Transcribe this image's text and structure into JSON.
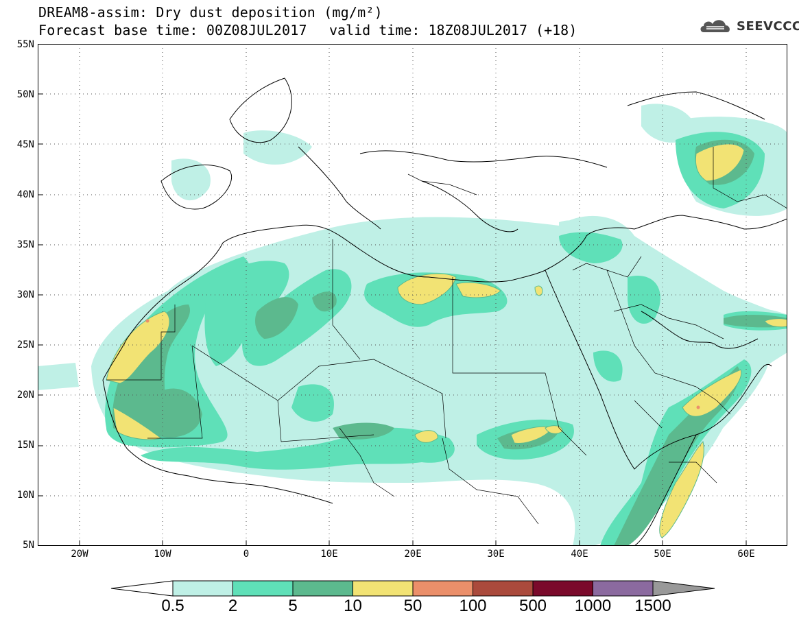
{
  "header": {
    "title": "DREAM8-assim: Dry dust deposition (mg/m²)",
    "base_time": "Forecast base time: 00Z08JUL2017",
    "valid_time": "valid time: 18Z08JUL2017 (+18)",
    "logo_text": "SEEVCCC"
  },
  "map": {
    "lat_labels": [
      "55N",
      "50N",
      "45N",
      "40N",
      "35N",
      "30N",
      "25N",
      "20N",
      "15N",
      "10N",
      "5N"
    ],
    "lon_labels": [
      "20W",
      "10W",
      "0",
      "10E",
      "20E",
      "30E",
      "40E",
      "50E",
      "60E"
    ],
    "lat_range": [
      5,
      55
    ],
    "lon_range": [
      -25,
      65
    ],
    "grid": "dotted",
    "projection": "lat-lon"
  },
  "legend": {
    "labels": [
      "0.5",
      "2",
      "5",
      "10",
      "50",
      "100",
      "500",
      "1000",
      "1500"
    ],
    "colors": [
      "#bff0e6",
      "#5fe0b8",
      "#5cb98e",
      "#f2e374",
      "#eb8f6a",
      "#aa4a3c",
      "#7a0a2b",
      "#8b6a9f"
    ],
    "under_color": "#ffffff",
    "over_color": "#999999"
  }
}
